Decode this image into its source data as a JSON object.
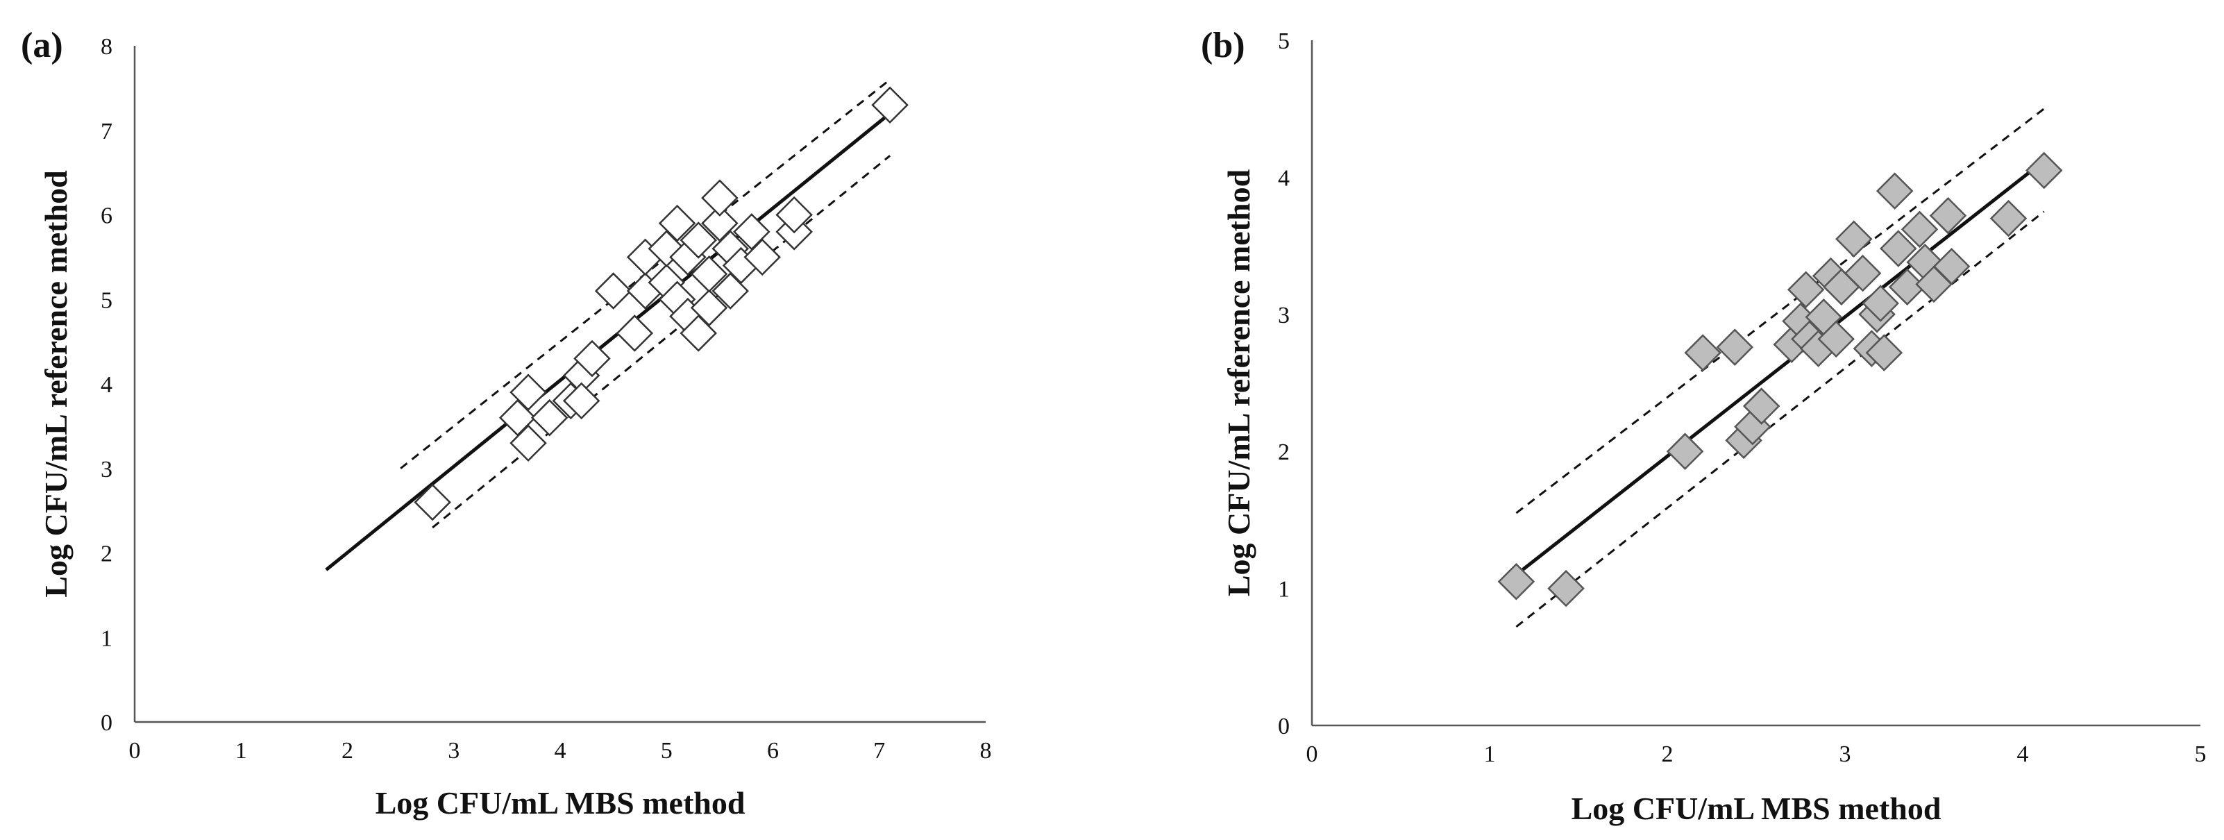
{
  "chart_data": [
    {
      "type": "scatter",
      "panel_label": "(a)",
      "xlabel": "Log CFU/mL MBS method",
      "ylabel": "Log CFU/mL reference method",
      "xlim": [
        0,
        8
      ],
      "ylim": [
        0,
        8
      ],
      "xticks": [
        0,
        1,
        2,
        3,
        4,
        5,
        6,
        7,
        8
      ],
      "yticks": [
        0,
        1,
        2,
        3,
        4,
        5,
        6,
        7,
        8
      ],
      "grid": false,
      "legend": "none",
      "marker": "hollow-diamond",
      "marker_color": "#ffffff",
      "fit_line": {
        "x": [
          1.8,
          7.1
        ],
        "y": [
          1.8,
          7.2
        ]
      },
      "upper_band": {
        "x": [
          2.5,
          7.1
        ],
        "y": [
          3.0,
          7.6
        ]
      },
      "lower_band": {
        "x": [
          2.8,
          7.1
        ],
        "y": [
          2.3,
          6.7
        ]
      },
      "points": [
        {
          "x": 2.8,
          "y": 2.6
        },
        {
          "x": 3.6,
          "y": 3.6
        },
        {
          "x": 3.7,
          "y": 3.9
        },
        {
          "x": 3.7,
          "y": 3.3
        },
        {
          "x": 3.9,
          "y": 3.6
        },
        {
          "x": 4.1,
          "y": 3.8
        },
        {
          "x": 4.2,
          "y": 4.1
        },
        {
          "x": 4.2,
          "y": 3.8
        },
        {
          "x": 4.3,
          "y": 4.3
        },
        {
          "x": 4.5,
          "y": 5.1
        },
        {
          "x": 4.7,
          "y": 4.6
        },
        {
          "x": 4.8,
          "y": 5.1
        },
        {
          "x": 4.8,
          "y": 5.5
        },
        {
          "x": 5.0,
          "y": 5.2
        },
        {
          "x": 5.0,
          "y": 5.6
        },
        {
          "x": 5.1,
          "y": 5.9
        },
        {
          "x": 5.1,
          "y": 5.0
        },
        {
          "x": 5.2,
          "y": 4.8
        },
        {
          "x": 5.2,
          "y": 5.5
        },
        {
          "x": 5.3,
          "y": 4.6
        },
        {
          "x": 5.3,
          "y": 5.7
        },
        {
          "x": 5.4,
          "y": 4.9
        },
        {
          "x": 5.4,
          "y": 5.3
        },
        {
          "x": 5.5,
          "y": 5.9
        },
        {
          "x": 5.5,
          "y": 6.2
        },
        {
          "x": 5.6,
          "y": 5.1
        },
        {
          "x": 5.6,
          "y": 5.6
        },
        {
          "x": 5.7,
          "y": 5.4
        },
        {
          "x": 5.8,
          "y": 5.8
        },
        {
          "x": 5.9,
          "y": 5.5
        },
        {
          "x": 6.2,
          "y": 5.8
        },
        {
          "x": 6.2,
          "y": 6.0
        },
        {
          "x": 7.1,
          "y": 7.3
        }
      ]
    },
    {
      "type": "scatter",
      "panel_label": "(b)",
      "xlabel": "Log CFU/mL MBS method",
      "ylabel": "Log CFU/mL reference method",
      "xlim": [
        0,
        5
      ],
      "ylim": [
        0,
        5
      ],
      "xticks": [
        0,
        1,
        2,
        3,
        4,
        5
      ],
      "yticks": [
        0,
        1,
        2,
        3,
        4,
        5
      ],
      "grid": false,
      "legend": "none",
      "marker": "filled-diamond",
      "marker_color": "#bdbdbd",
      "fit_line": {
        "x": [
          1.15,
          4.12
        ],
        "y": [
          1.1,
          4.12
        ]
      },
      "upper_band": {
        "x": [
          1.15,
          4.12
        ],
        "y": [
          1.55,
          4.5
        ]
      },
      "lower_band": {
        "x": [
          1.15,
          4.12
        ],
        "y": [
          0.72,
          3.75
        ]
      },
      "points": [
        {
          "x": 1.15,
          "y": 1.05
        },
        {
          "x": 1.43,
          "y": 1.0
        },
        {
          "x": 2.1,
          "y": 2.0
        },
        {
          "x": 2.2,
          "y": 2.72
        },
        {
          "x": 2.38,
          "y": 2.76
        },
        {
          "x": 2.43,
          "y": 2.08
        },
        {
          "x": 2.48,
          "y": 2.18
        },
        {
          "x": 2.53,
          "y": 2.33
        },
        {
          "x": 2.7,
          "y": 2.78
        },
        {
          "x": 2.75,
          "y": 2.95
        },
        {
          "x": 2.78,
          "y": 3.18
        },
        {
          "x": 2.8,
          "y": 2.82
        },
        {
          "x": 2.85,
          "y": 2.75
        },
        {
          "x": 2.88,
          "y": 2.98
        },
        {
          "x": 2.92,
          "y": 3.28
        },
        {
          "x": 2.95,
          "y": 2.82
        },
        {
          "x": 2.98,
          "y": 3.2
        },
        {
          "x": 3.05,
          "y": 3.55
        },
        {
          "x": 3.1,
          "y": 3.3
        },
        {
          "x": 3.15,
          "y": 2.75
        },
        {
          "x": 3.18,
          "y": 3.0
        },
        {
          "x": 3.2,
          "y": 3.08
        },
        {
          "x": 3.22,
          "y": 2.72
        },
        {
          "x": 3.28,
          "y": 3.9
        },
        {
          "x": 3.3,
          "y": 3.48
        },
        {
          "x": 3.35,
          "y": 3.2
        },
        {
          "x": 3.42,
          "y": 3.62
        },
        {
          "x": 3.45,
          "y": 3.38
        },
        {
          "x": 3.5,
          "y": 3.22
        },
        {
          "x": 3.58,
          "y": 3.72
        },
        {
          "x": 3.6,
          "y": 3.35
        },
        {
          "x": 3.92,
          "y": 3.7
        },
        {
          "x": 4.12,
          "y": 4.05
        }
      ]
    }
  ]
}
